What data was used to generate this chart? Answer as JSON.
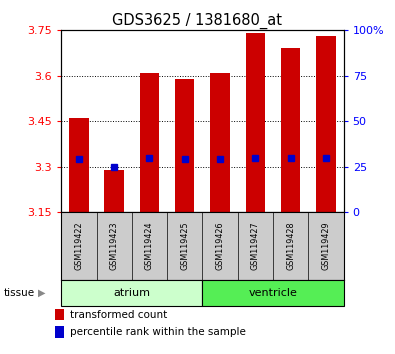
{
  "title": "GDS3625 / 1381680_at",
  "samples": [
    "GSM119422",
    "GSM119423",
    "GSM119424",
    "GSM119425",
    "GSM119426",
    "GSM119427",
    "GSM119428",
    "GSM119429"
  ],
  "bar_bottoms": [
    3.15,
    3.15,
    3.15,
    3.15,
    3.15,
    3.15,
    3.15,
    3.15
  ],
  "bar_tops": [
    3.46,
    3.29,
    3.61,
    3.59,
    3.61,
    3.74,
    3.69,
    3.73
  ],
  "percentile_vals": [
    3.325,
    3.3,
    3.328,
    3.325,
    3.325,
    3.328,
    3.328,
    3.328
  ],
  "ylim_left": [
    3.15,
    3.75
  ],
  "ylim_right": [
    0,
    100
  ],
  "yticks_left": [
    3.15,
    3.3,
    3.45,
    3.6,
    3.75
  ],
  "yticks_right": [
    0,
    25,
    50,
    75,
    100
  ],
  "ytick_labels_left": [
    "3.15",
    "3.3",
    "3.45",
    "3.6",
    "3.75"
  ],
  "ytick_labels_right": [
    "0",
    "25",
    "50",
    "75",
    "100%"
  ],
  "bar_color": "#cc0000",
  "percentile_color": "#0000cc",
  "atrium_color": "#ccffcc",
  "ventricle_color": "#55ee55",
  "atrium_label": "atrium",
  "ventricle_label": "ventricle",
  "tissue_label": "tissue",
  "legend_bar_label": "transformed count",
  "legend_pct_label": "percentile rank within the sample",
  "bar_width": 0.55,
  "background_color": "#ffffff",
  "tick_label_area_bg": "#cccccc"
}
